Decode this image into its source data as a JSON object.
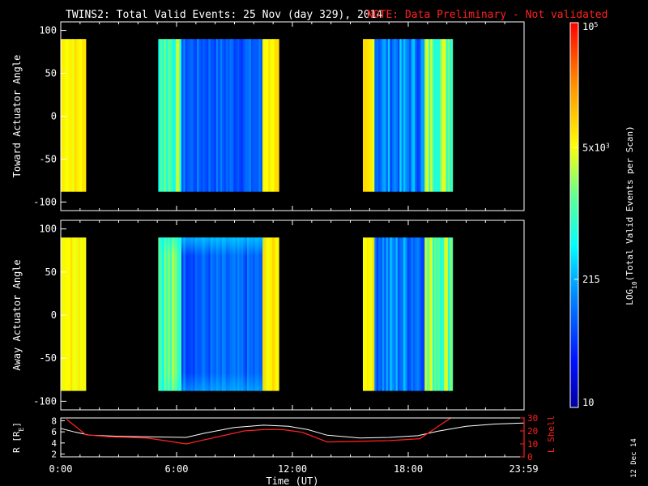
{
  "title": {
    "main": "TWINS2: Total Valid Events: 25 Nov (day 329), 2014",
    "note": "NOTE: Data Preliminary - Not validated"
  },
  "colors": {
    "background": "#000000",
    "text": "#ffffff",
    "note": "#ff2020",
    "lshell": "#ff2020",
    "radius": "#ffffff"
  },
  "stamp": "12 Dec 14",
  "chart_data": [
    {
      "type": "heatmap",
      "ylabel": "Toward Actuator Angle",
      "xlim": [
        0,
        24
      ],
      "ylim": [
        -110,
        110
      ],
      "yticks": [
        "100",
        "50",
        "0",
        "-50",
        "-100"
      ],
      "y_values": [
        100,
        50,
        0,
        -50,
        -100
      ],
      "data_y_range": [
        -88,
        90
      ],
      "data_intervals": [
        [
          0,
          1.3
        ],
        [
          5.05,
          11.3
        ],
        [
          15.65,
          20.3
        ]
      ],
      "low_band": [
        6.2,
        10.4
      ],
      "low_band_2": [
        16.2,
        18.8
      ]
    },
    {
      "type": "heatmap",
      "ylabel": "Away Actuator Angle",
      "xlim": [
        0,
        24
      ],
      "ylim": [
        -110,
        110
      ],
      "yticks": [
        "100",
        "50",
        "0",
        "-50",
        "-100"
      ],
      "y_values": [
        100,
        50,
        0,
        -50,
        -100
      ],
      "data_y_range": [
        -88,
        90
      ],
      "data_intervals": [
        [
          0,
          1.3
        ],
        [
          5.05,
          11.3
        ],
        [
          15.65,
          20.3
        ]
      ],
      "low_band": [
        6.2,
        10.4
      ],
      "low_band_2": [
        16.2,
        18.8
      ]
    },
    {
      "type": "line",
      "ylabel": "R [R",
      "ylabel_sub": "E",
      "ylabel_end": "]",
      "y2label": "L Shell",
      "xlabel": "Time (UT)",
      "xlim": [
        0,
        24
      ],
      "x_ticks": [
        "0:00",
        "6:00",
        "12:00",
        "18:00",
        "23:59"
      ],
      "x_tick_values": [
        0,
        6,
        12,
        18,
        23.98
      ],
      "ylim": [
        1.5,
        8.5
      ],
      "yticks": [
        "8",
        "6",
        "4",
        "2"
      ],
      "y_values": [
        8,
        6,
        4,
        2
      ],
      "y2lim": [
        0,
        30
      ],
      "y2ticks": [
        "30",
        "20",
        "10",
        "0"
      ],
      "y2_values": [
        30,
        20,
        10,
        0
      ],
      "series": [
        {
          "axis": "left",
          "x": [
            0,
            0.8,
            1.5,
            3,
            4.5,
            6.5,
            7.5,
            9,
            10.5,
            11.8,
            12.8,
            13.8,
            15.5,
            17,
            18.5,
            19.5,
            21,
            22.5,
            23.98
          ],
          "y": [
            6.6,
            5.9,
            5.4,
            5.2,
            5.1,
            5.0,
            5.8,
            6.8,
            7.2,
            7.0,
            6.4,
            5.4,
            4.9,
            5.0,
            5.3,
            6.1,
            7.0,
            7.4,
            7.6
          ]
        },
        {
          "axis": "right",
          "x": [
            0.3,
            1.3,
            2.5,
            4.5,
            6.5,
            8,
            9.5,
            10.5,
            11.5,
            12.5,
            13.8,
            15.5,
            17,
            18.6,
            19.2,
            20.3
          ],
          "y": [
            29,
            17,
            15.5,
            14.5,
            10,
            15,
            20,
            21,
            21,
            19,
            11.5,
            12,
            12.5,
            14,
            20,
            31
          ]
        }
      ]
    }
  ],
  "colorbar": {
    "scale": "log",
    "range": [
      10,
      100000
    ],
    "ticks": [
      "10",
      "215",
      "5x10",
      "10"
    ],
    "tick_superscripts": [
      "",
      "",
      "3",
      "5"
    ],
    "tick_values": [
      10,
      215,
      5000,
      100000
    ],
    "label": "LOG",
    "label_sub": "10",
    "label_end": "(Total Valid Events per Scan)"
  }
}
